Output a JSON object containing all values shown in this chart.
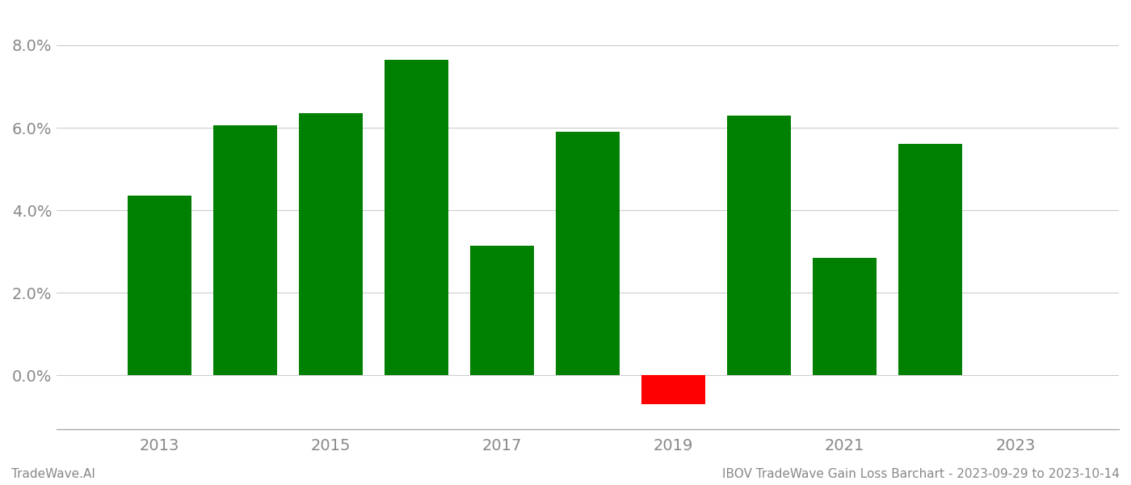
{
  "years": [
    2013,
    2014,
    2015,
    2016,
    2017,
    2018,
    2019,
    2020,
    2021,
    2022
  ],
  "values": [
    0.0435,
    0.0605,
    0.0635,
    0.0765,
    0.0315,
    0.059,
    -0.007,
    0.063,
    0.0285,
    0.056
  ],
  "bar_colors": [
    "#008000",
    "#008000",
    "#008000",
    "#008000",
    "#008000",
    "#008000",
    "#ff0000",
    "#008000",
    "#008000",
    "#008000"
  ],
  "footer_left": "TradeWave.AI",
  "footer_right": "IBOV TradeWave Gain Loss Barchart - 2023-09-29 to 2023-10-14",
  "ylim": [
    -0.013,
    0.088
  ],
  "yticks": [
    0.0,
    0.02,
    0.04,
    0.06,
    0.08
  ],
  "xticks": [
    2013,
    2015,
    2017,
    2019,
    2021,
    2023
  ],
  "xlim": [
    2011.8,
    2024.2
  ],
  "background_color": "#ffffff",
  "grid_color": "#cccccc",
  "axis_color": "#aaaaaa",
  "tick_color": "#888888",
  "footer_fontsize": 11,
  "tick_fontsize": 14,
  "bar_width": 0.75
}
